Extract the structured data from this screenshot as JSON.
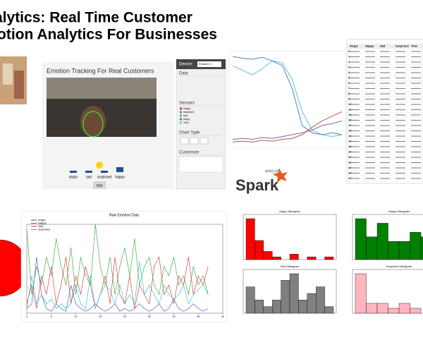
{
  "header": {
    "title_lines": [
      "alytics: Real Time Customer",
      "otion Analytics For Businesses"
    ]
  },
  "webcam": {
    "title": "Emotion Tracking For Real Customers",
    "buttons": [
      "angry",
      "sad",
      "surprised",
      "happy"
    ],
    "stop": "stop"
  },
  "controls": {
    "device_label": "Device:",
    "device": "Emotion 1",
    "sections": [
      "Data",
      "Sensors",
      "Chart Type",
      "Customize"
    ],
    "sensors": [
      "Happy",
      "Surprised",
      "Sad",
      "Angry",
      "Time"
    ]
  },
  "live_chart": {
    "type": "line",
    "series": [
      {
        "color": "#5bc0de",
        "values": [
          0.85,
          0.8,
          0.75,
          0.82,
          0.9,
          0.88,
          0.7,
          0.35,
          0.15,
          0.1,
          0.08,
          0.1
        ]
      },
      {
        "color": "#4f81bd",
        "values": [
          0.95,
          0.93,
          0.92,
          0.94,
          0.9,
          0.85,
          0.6,
          0.2,
          0.12,
          0.1,
          0.12,
          0.1
        ]
      },
      {
        "color": "#c0504d",
        "values": [
          0.02,
          0.03,
          0.02,
          0.04,
          0.03,
          0.05,
          0.06,
          0.1,
          0.18,
          0.25,
          0.3,
          0.35
        ]
      },
      {
        "color": "#8064a2",
        "values": [
          0.05,
          0.06,
          0.05,
          0.07,
          0.06,
          0.08,
          0.1,
          0.12,
          0.15,
          0.2,
          0.22,
          0.25
        ]
      }
    ]
  },
  "table": {
    "columns": [
      "Angry",
      "Happy",
      "Sad",
      "Surprised",
      "Time"
    ],
    "row_index": [
      0,
      1,
      2,
      3,
      4,
      5,
      6,
      7,
      8,
      9,
      10,
      11,
      12,
      13,
      14,
      15,
      16,
      17,
      18,
      19,
      20,
      21,
      22,
      23,
      24
    ]
  },
  "logo": {
    "small": "APACHE",
    "name": "Spark"
  },
  "raw_chart": {
    "type": "line",
    "title": "Raw Emotion Data",
    "xticks": [
      0,
      5,
      10,
      15,
      20,
      25,
      30,
      35,
      40
    ],
    "series": [
      {
        "name": "Angry",
        "color": "#3b4cc0",
        "values": [
          0.05,
          0.1,
          0.6,
          0.2,
          0.05,
          0.02,
          0.1,
          0.05,
          0.02,
          0.3,
          0.1,
          0.05,
          0.02,
          0.05,
          0.1,
          0.05,
          0.02,
          0.05,
          0.1,
          0.02,
          0.05,
          0.02,
          0.05,
          0.1,
          0.05,
          0.02,
          0.05,
          0.1,
          0.02,
          0.05,
          0.15,
          0.05,
          0.02,
          0.05,
          0.1,
          0.05,
          0.02,
          0.05
        ]
      },
      {
        "name": "Happy",
        "color": "#2ca02c",
        "values": [
          0.9,
          0.2,
          0.5,
          0.3,
          0.6,
          0.4,
          0.8,
          0.5,
          0.3,
          0.7,
          0.2,
          0.6,
          0.4,
          0.3,
          0.95,
          0.5,
          0.3,
          0.6,
          0.2,
          0.5,
          0.7,
          0.4,
          0.8,
          0.3,
          0.5,
          0.6,
          0.3,
          0.2,
          0.5,
          0.4,
          0.6,
          0.3,
          0.4,
          0.2,
          0.5,
          0.3,
          0.4,
          0.2
        ]
      },
      {
        "name": "Sad",
        "color": "#d62728",
        "values": [
          0.1,
          0.3,
          0.05,
          0.4,
          0.2,
          0.5,
          0.1,
          0.3,
          0.6,
          0.1,
          0.4,
          0.2,
          0.5,
          0.3,
          0.05,
          0.2,
          0.4,
          0.1,
          0.6,
          0.2,
          0.1,
          0.4,
          0.05,
          0.3,
          0.2,
          0.1,
          0.5,
          0.6,
          0.2,
          0.3,
          0.1,
          0.4,
          0.3,
          0.6,
          0.2,
          0.4,
          0.3,
          0.5
        ]
      },
      {
        "name": "Surprised",
        "color": "#17becf",
        "values": [
          0.05,
          0.4,
          0.1,
          0.2,
          0.1,
          0.15,
          0.05,
          0.1,
          0.05,
          0.1,
          0.3,
          0.1,
          0.05,
          0.4,
          0.05,
          0.2,
          0.3,
          0.25,
          0.1,
          0.3,
          0.1,
          0.2,
          0.1,
          0.55,
          0.2,
          0.3,
          0.2,
          0.1,
          0.3,
          0.2,
          0.15,
          0.2,
          0.3,
          0.1,
          0.2,
          0.25,
          0.3,
          0.2
        ]
      }
    ]
  },
  "histograms": [
    {
      "title": "Angry Histogram",
      "color": "#ff0000",
      "bins": [
        0,
        0.1,
        0.2,
        0.3,
        0.4,
        0.5,
        0.6,
        0.7,
        0.8,
        0.9,
        1.0
      ],
      "counts": [
        15,
        7,
        3,
        1,
        0,
        2,
        0,
        1,
        0,
        1
      ]
    },
    {
      "title": "Happy Histogram",
      "color": "#008000",
      "bins": [
        0,
        0.125,
        0.25,
        0.375,
        0.5,
        0.625,
        0.75,
        0.875,
        1.0
      ],
      "counts": [
        9,
        5,
        8,
        4,
        4,
        6,
        5,
        3
      ]
    },
    {
      "title": "Sad Histogram",
      "color": "#808080",
      "bins": [
        0,
        0.1,
        0.2,
        0.3,
        0.4,
        0.5,
        0.6,
        0.7,
        0.8,
        0.9,
        1.0
      ],
      "counts": [
        4,
        2,
        1,
        2,
        5,
        6,
        2,
        3,
        4,
        1
      ]
    },
    {
      "title": "Surprised Histogram",
      "color": "#ffb6c1",
      "bins": [
        0,
        0.125,
        0.25,
        0.375,
        0.5,
        0.625,
        0.75,
        0.875,
        1.0
      ],
      "counts": [
        8,
        2,
        2,
        1,
        2,
        1,
        0,
        1
      ]
    }
  ]
}
